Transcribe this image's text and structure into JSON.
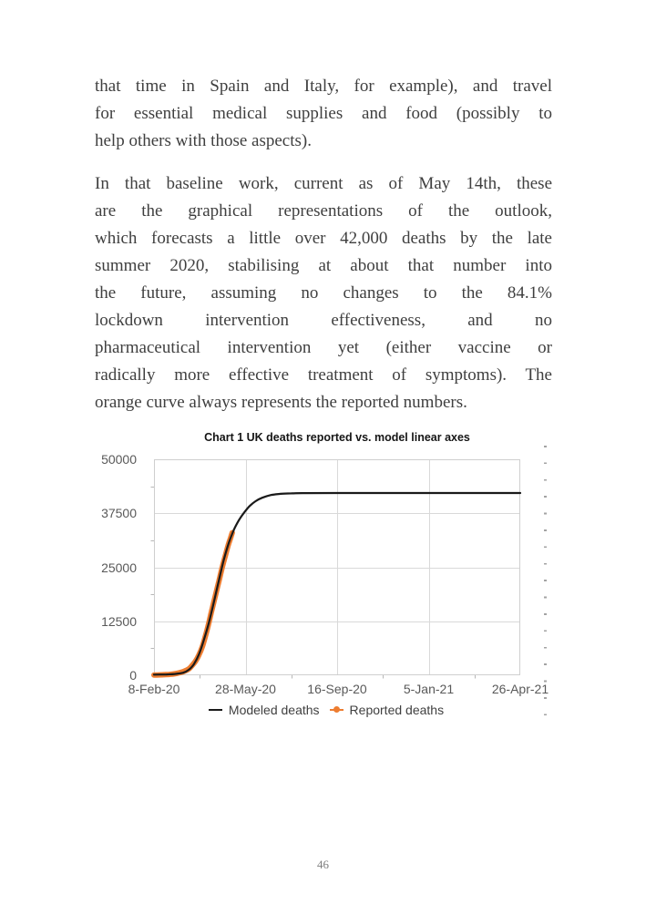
{
  "page": {
    "number": "46"
  },
  "paragraphs": [
    {
      "lines": [
        "that time in Spain and Italy, for example), and travel",
        "for essential medical supplies and food (possibly to",
        "help others with those aspects)."
      ]
    },
    {
      "lines": [
        "In that baseline work, current as of May 14th, these",
        "are the graphical representations of the outlook,",
        "which forecasts a little over 42,000 deaths by the late",
        "summer 2020, stabilising at about that number into",
        "the future, assuming no changes to the 84.1%",
        "lockdown intervention effectiveness, and no",
        "pharmaceutical intervention yet (either vaccine or",
        "radically more effective treatment of symptoms). The",
        "orange curve always represents the reported numbers."
      ]
    }
  ],
  "chart_data": {
    "type": "line",
    "title": "Chart 1 UK deaths reported vs. model linear axes",
    "xlabel": "",
    "ylabel": "",
    "grid": true,
    "legend_position": "bottom",
    "x_axis": {
      "unit": "date (days since 8-Feb-2020)",
      "range_days": [
        0,
        440
      ],
      "tick_days": [
        0,
        110,
        220,
        330,
        440
      ],
      "tick_labels": [
        "8-Feb-20",
        "28-May-20",
        "16-Sep-20",
        "5-Jan-21",
        "26-Apr-21"
      ],
      "minor_tick_days": [
        55,
        165,
        275,
        385
      ]
    },
    "y_axis": {
      "range": [
        0,
        50000
      ],
      "ticks": [
        0,
        12500,
        25000,
        37500,
        50000
      ],
      "tick_labels": [
        "0",
        "12500",
        "25000",
        "37500",
        "50000"
      ],
      "minor_ticks": [
        6250,
        18750,
        31250,
        43750
      ]
    },
    "plateau_value_approx": 42200,
    "series": [
      {
        "name": "Modeled deaths",
        "color": "#1a1a1a",
        "stroke_width": 2.2,
        "marker": "line",
        "z": 2,
        "points_day_value": [
          [
            0,
            150
          ],
          [
            15,
            200
          ],
          [
            25,
            300
          ],
          [
            35,
            600
          ],
          [
            42,
            1300
          ],
          [
            48,
            2600
          ],
          [
            54,
            4800
          ],
          [
            60,
            8200
          ],
          [
            66,
            12200
          ],
          [
            72,
            17000
          ],
          [
            78,
            22000
          ],
          [
            84,
            26800
          ],
          [
            90,
            30700
          ],
          [
            96,
            33700
          ],
          [
            102,
            35900
          ],
          [
            108,
            37600
          ],
          [
            115,
            39200
          ],
          [
            122,
            40300
          ],
          [
            130,
            41100
          ],
          [
            140,
            41700
          ],
          [
            152,
            42000
          ],
          [
            165,
            42120
          ],
          [
            180,
            42170
          ],
          [
            220,
            42200
          ],
          [
            300,
            42200
          ],
          [
            440,
            42200
          ]
        ]
      },
      {
        "name": "Reported deaths",
        "color": "#ED7D31",
        "stroke_width": 6,
        "marker": "line-dot",
        "z": 1,
        "points_day_value": [
          [
            0,
            60
          ],
          [
            6,
            80
          ],
          [
            12,
            120
          ],
          [
            18,
            200
          ],
          [
            24,
            320
          ],
          [
            30,
            550
          ],
          [
            36,
            900
          ],
          [
            42,
            1500
          ],
          [
            46,
            2300
          ],
          [
            50,
            3300
          ],
          [
            54,
            4700
          ],
          [
            58,
            6600
          ],
          [
            62,
            9200
          ],
          [
            66,
            12200
          ],
          [
            70,
            15500
          ],
          [
            74,
            18600
          ],
          [
            78,
            21800
          ],
          [
            82,
            25000
          ],
          [
            86,
            27900
          ],
          [
            89,
            30000
          ],
          [
            92,
            31800
          ],
          [
            94,
            33000
          ]
        ]
      }
    ]
  },
  "colors": {
    "body_text": "#3f3f3f",
    "model_line": "#1a1a1a",
    "reported_line": "#ED7D31",
    "gridline": "#d9d9d9",
    "plot_border": "#cfcfcf",
    "minor_tick": "#b7b7b7",
    "axis_label": "#595959",
    "legend_text": "#404040",
    "dotted_margin": "#a3a3a3",
    "page_number": "#7d7d7d"
  }
}
